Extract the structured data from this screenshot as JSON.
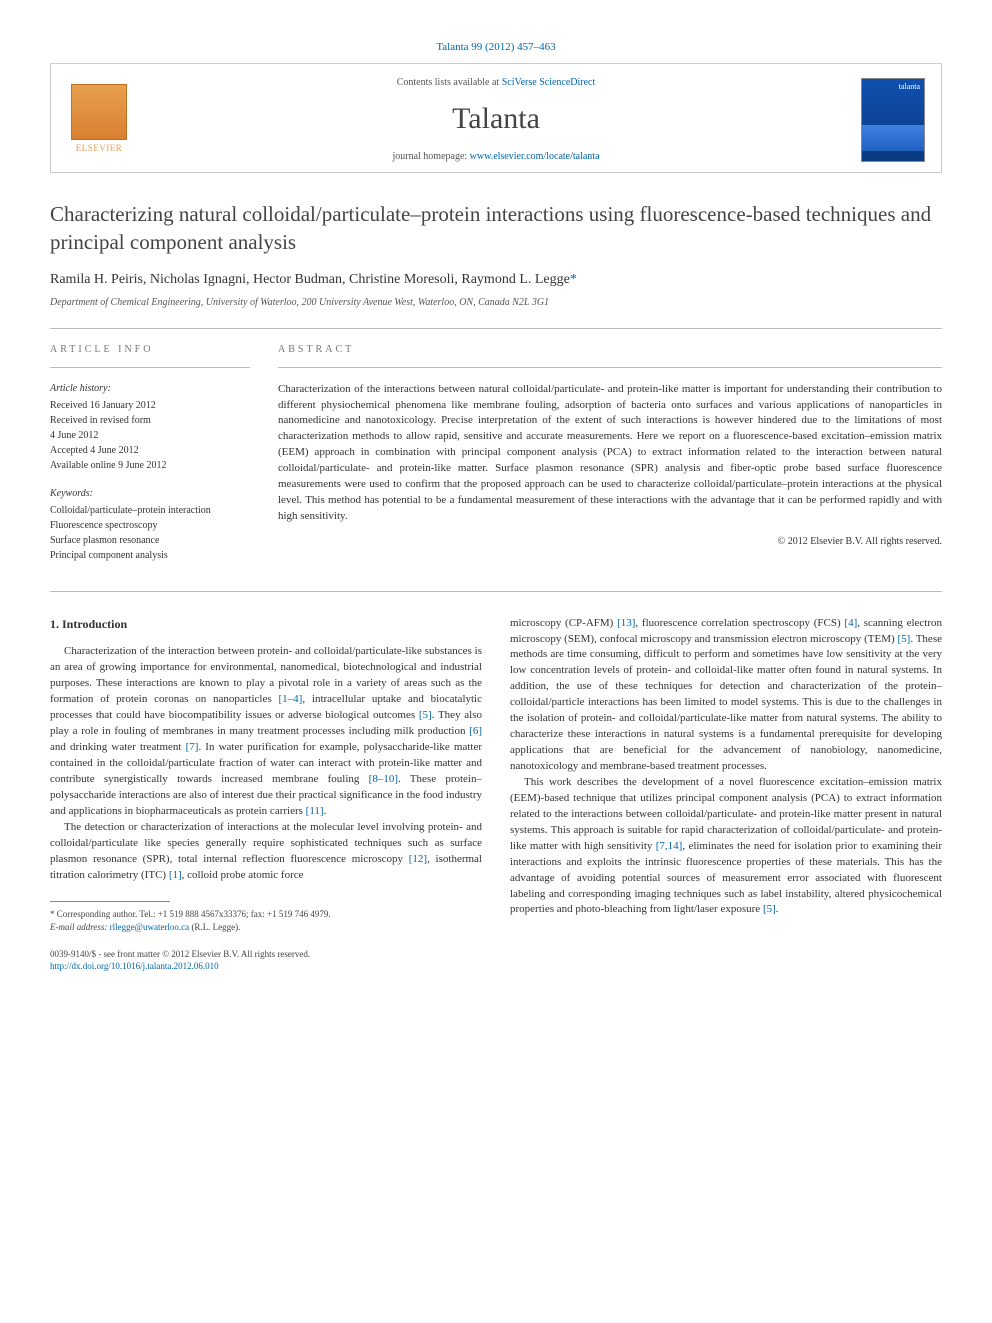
{
  "header": {
    "citation_prefix": "Talanta 99 (2012) 457–463",
    "contents_prefix": "Contents lists available at ",
    "contents_link": "SciVerse ScienceDirect",
    "journal_name": "Talanta",
    "homepage_prefix": "journal homepage: ",
    "homepage_link": "www.elsevier.com/locate/talanta",
    "publisher_name": "ELSEVIER",
    "cover_label": "talanta"
  },
  "article": {
    "title": "Characterizing natural colloidal/particulate–protein interactions using fluorescence-based techniques and principal component analysis",
    "authors": "Ramila H. Peiris, Nicholas Ignagni, Hector Budman, Christine Moresoli, Raymond L. Legge",
    "corresponding_marker": "*",
    "affiliation": "Department of Chemical Engineering, University of Waterloo, 200 University Avenue West, Waterloo, ON, Canada N2L 3G1"
  },
  "info": {
    "label": "article info",
    "history_heading": "Article history:",
    "history_lines": {
      "l1": "Received 16 January 2012",
      "l2": "Received in revised form",
      "l3": "4 June 2012",
      "l4": "Accepted 4 June 2012",
      "l5": "Available online 9 June 2012"
    },
    "keywords_heading": "Keywords:",
    "keywords": {
      "k1": "Colloidal/particulate–protein interaction",
      "k2": "Fluorescence spectroscopy",
      "k3": "Surface plasmon resonance",
      "k4": "Principal component analysis"
    }
  },
  "abstract": {
    "label": "abstract",
    "text": "Characterization of the interactions between natural colloidal/particulate- and protein-like matter is important for understanding their contribution to different physiochemical phenomena like membrane fouling, adsorption of bacteria onto surfaces and various applications of nanoparticles in nanomedicine and nanotoxicology. Precise interpretation of the extent of such interactions is however hindered due to the limitations of most characterization methods to allow rapid, sensitive and accurate measurements. Here we report on a fluorescence-based excitation–emission matrix (EEM) approach in combination with principal component analysis (PCA) to extract information related to the interaction between natural colloidal/particulate- and protein-like matter. Surface plasmon resonance (SPR) analysis and fiber-optic probe based surface fluorescence measurements were used to confirm that the proposed approach can be used to characterize colloidal/particulate–protein interactions at the physical level. This method has potential to be a fundamental measurement of these interactions with the advantage that it can be performed rapidly and with high sensitivity.",
    "copyright": "© 2012 Elsevier B.V. All rights reserved."
  },
  "body": {
    "heading": "1. Introduction",
    "left_p1_a": "Characterization of the interaction between protein- and colloidal/particulate-like substances is an area of growing importance for environmental, nanomedical, biotechnological and industrial purposes. These interactions are known to play a pivotal role in a variety of areas such as the formation of protein coronas on nanoparticles ",
    "left_p1_ref1": "[1–4]",
    "left_p1_b": ", intracellular uptake and biocatalytic processes that could have biocompatibility issues or adverse biological outcomes ",
    "left_p1_ref2": "[5]",
    "left_p1_c": ". They also play a role in fouling of membranes in many treatment processes including milk production ",
    "left_p1_ref3": "[6]",
    "left_p1_d": " and drinking water treatment ",
    "left_p1_ref4": "[7]",
    "left_p1_e": ". In water purification for example, polysaccharide-like matter contained in the colloidal/particulate fraction of water can interact with protein-like matter and contribute synergistically towards increased membrane fouling ",
    "left_p1_ref5": "[8–10]",
    "left_p1_f": ". These protein–polysaccharide interactions are also of interest due their practical significance in the food industry and applications in biopharmaceuticals as protein carriers ",
    "left_p1_ref6": "[11]",
    "left_p1_g": ".",
    "left_p2_a": "The detection or characterization of interactions at the molecular level involving protein- and colloidal/particulate like species generally require sophisticated techniques such as surface plasmon resonance (SPR), total internal reflection fluorescence microscopy ",
    "left_p2_ref1": "[12]",
    "left_p2_b": ", isothermal titration calorimetry (ITC) ",
    "left_p2_ref2": "[1]",
    "left_p2_c": ", colloid probe atomic force",
    "right_p1_a": "microscopy (CP-AFM) ",
    "right_p1_ref1": "[13]",
    "right_p1_b": ", fluorescence correlation spectroscopy (FCS) ",
    "right_p1_ref2": "[4]",
    "right_p1_c": ", scanning electron microscopy (SEM), confocal microscopy and transmission electron microscopy (TEM) ",
    "right_p1_ref3": "[5]",
    "right_p1_d": ". These methods are time consuming, difficult to perform and sometimes have low sensitivity at the very low concentration levels of protein- and colloidal-like matter often found in natural systems. In addition, the use of these techniques for detection and characterization of the protein–colloidal/particle interactions has been limited to model systems. This is due to the challenges in the isolation of protein- and colloidal/particulate-like matter from natural systems. The ability to characterize these interactions in natural systems is a fundamental prerequisite for developing applications that are beneficial for the advancement of nanobiology, nanomedicine, nanotoxicology and membrane-based treatment processes.",
    "right_p2_a": "This work describes the development of a novel fluorescence excitation–emission matrix (EEM)-based technique that utilizes principal component analysis (PCA) to extract information related to the interactions between colloidal/particulate- and protein-like matter present in natural systems. This approach is suitable for rapid characterization of colloidal/particulate- and protein-like matter with high sensitivity ",
    "right_p2_ref1": "[7,14]",
    "right_p2_b": ", eliminates the need for isolation prior to examining their interactions and exploits the intrinsic fluorescence properties of these materials. This has the advantage of avoiding potential sources of measurement error associated with fluorescent labeling and corresponding imaging techniques such as label instability, altered physicochemical properties and photo-bleaching from light/laser exposure ",
    "right_p2_ref2": "[5]",
    "right_p2_c": "."
  },
  "footnote": {
    "corr_label": "* Corresponding author. Tel.: +1 519 888 4567x33376; fax: +1 519 746 4979.",
    "email_label": "E-mail address: ",
    "email": "rllegge@uwaterloo.ca",
    "email_suffix": " (R.L. Legge)."
  },
  "bottom": {
    "issn_line": "0039-9140/$ - see front matter © 2012 Elsevier B.V. All rights reserved.",
    "doi_prefix": "http://dx.doi.org/",
    "doi": "10.1016/j.talanta.2012.06.010"
  }
}
